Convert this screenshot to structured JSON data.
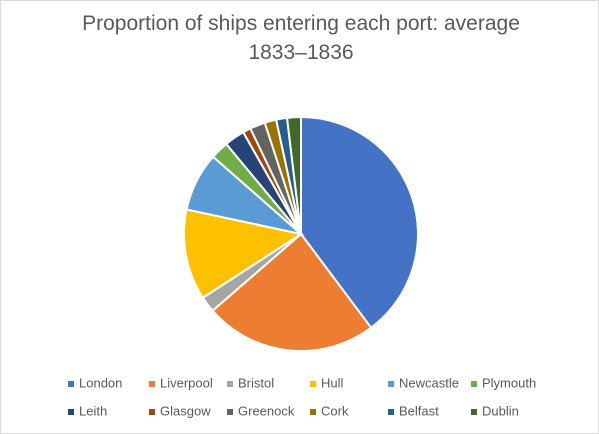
{
  "chart_data": {
    "type": "pie",
    "title": "Proportion of ships entering each port: average 1833–1836",
    "categories": [
      "London",
      "Liverpool",
      "Bristol",
      "Hull",
      "Newcastle",
      "Plymouth",
      "Leith",
      "Glasgow",
      "Greenock",
      "Cork",
      "Belfast",
      "Dublin"
    ],
    "values": [
      39.7,
      23.8,
      2.2,
      12.5,
      8.1,
      2.5,
      2.8,
      1.1,
      2.1,
      1.6,
      1.5,
      1.9
    ],
    "colors": [
      "#4472c4",
      "#ed7d31",
      "#a5a5a5",
      "#ffc000",
      "#5b9bd5",
      "#70ad47",
      "#264478",
      "#9e480e",
      "#636363",
      "#997300",
      "#255e91",
      "#43682b"
    ],
    "legend": "bottom"
  }
}
